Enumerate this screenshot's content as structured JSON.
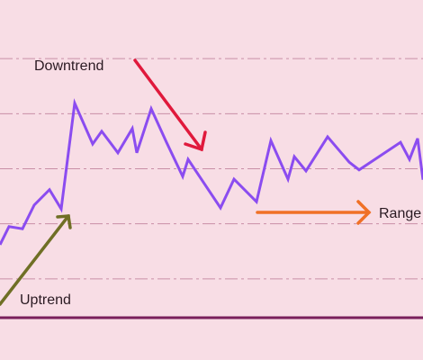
{
  "chart_data": {
    "type": "line",
    "annotations": [
      "Downtrend",
      "Uptrend",
      "Range"
    ],
    "x": [
      0,
      10,
      25,
      38,
      55,
      68,
      83,
      103,
      113,
      131,
      147,
      152,
      168,
      185,
      203,
      209,
      245,
      260,
      285,
      301,
      320,
      327,
      340,
      364,
      388,
      399,
      445,
      455,
      464,
      470
    ],
    "series": [
      {
        "color": "#8b4cf0",
        "values": [
          1.62,
          1.95,
          1.91,
          2.34,
          2.62,
          2.27,
          4.19,
          3.45,
          3.68,
          3.29,
          3.73,
          3.29,
          4.09,
          3.48,
          2.86,
          3.17,
          2.29,
          2.81,
          2.4,
          3.51,
          2.81,
          3.22,
          2.96,
          3.58,
          3.12,
          2.98,
          3.48,
          3.17,
          3.55,
          2.8
        ]
      }
    ],
    "xlim": [
      0,
      470
    ],
    "ylim": [
      0,
      6
    ],
    "yticks": [
      1,
      2,
      3,
      4,
      5
    ],
    "grid": true
  }
}
